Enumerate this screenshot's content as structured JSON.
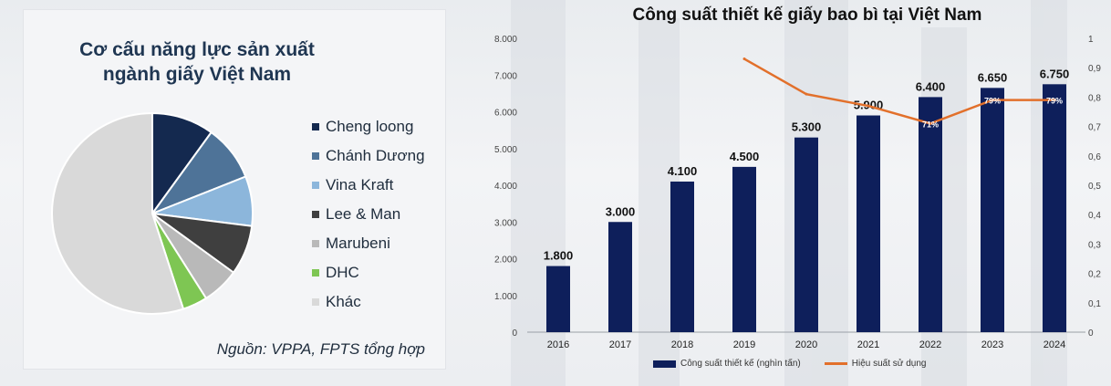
{
  "pie": {
    "title": "Cơ cấu năng lực sản xuất ngành giấy Việt Nam",
    "source": "Nguồn: VPPA, FPTS tổng hợp",
    "chart_data": {
      "type": "pie",
      "labels": [
        "Cheng loong",
        "Chánh Dương",
        "Vina Kraft",
        "Lee & Man",
        "Marubeni",
        "DHC",
        "Khác"
      ],
      "values": [
        10,
        9,
        8,
        8,
        6,
        4,
        55
      ],
      "colors": [
        "#14294f",
        "#4e7398",
        "#8cb6db",
        "#3f3f3f",
        "#b9b9b9",
        "#7ec653",
        "#d9d9d9"
      ],
      "legend_position": "right"
    }
  },
  "bar": {
    "chart_data": {
      "type": "bar+line",
      "title": "Công suất thiết kế giấy bao bì tại Việt Nam",
      "categories": [
        "2016",
        "2017",
        "2018",
        "2019",
        "2020",
        "2021",
        "2022",
        "2023",
        "2024"
      ],
      "series": [
        {
          "name": "Công suất thiết kế (nghìn tấn)",
          "type": "bar",
          "axis": "left",
          "values": [
            1800,
            3000,
            4100,
            4500,
            5300,
            5900,
            6400,
            6650,
            6750
          ],
          "labels": [
            "1.800",
            "3.000",
            "4.100",
            "4.500",
            "5.300",
            "5.900",
            "6.400",
            "6.650",
            "6.750"
          ],
          "color": "#0e1f5b"
        },
        {
          "name": "Hiệu suất sử dụng",
          "type": "line",
          "axis": "right",
          "values": [
            null,
            null,
            null,
            0.93,
            0.81,
            0.77,
            0.71,
            0.79,
            0.79
          ],
          "labels": [
            "",
            "",
            "",
            "",
            "",
            "",
            "71%",
            "79%",
            "79%"
          ],
          "color": "#e2702b"
        }
      ],
      "ylim_left": [
        0,
        8000
      ],
      "ylim_right": [
        0,
        1
      ],
      "left_ticks": [
        "0",
        "1.000",
        "2.000",
        "3.000",
        "4.000",
        "5.000",
        "6.000",
        "7.000",
        "8.000"
      ],
      "right_ticks": [
        "0",
        "0,1",
        "0,2",
        "0,3",
        "0,4",
        "0,5",
        "0,6",
        "0,7",
        "0,8",
        "0,9",
        "1"
      ],
      "legend_position": "bottom",
      "grid": false
    }
  }
}
